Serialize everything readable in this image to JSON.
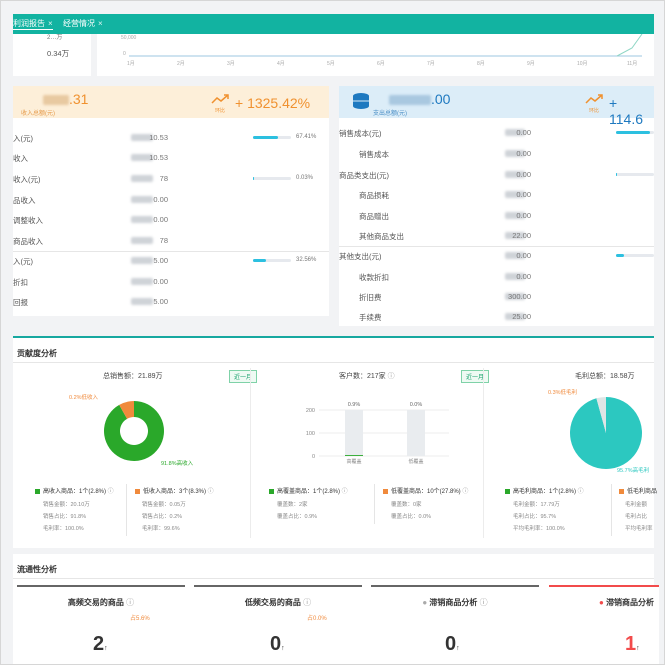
{
  "tabs": [
    {
      "label": "利润报告",
      "close": "×"
    },
    {
      "label": "经营情况",
      "close": "×"
    }
  ],
  "top": {
    "left_value_partial": "2…万",
    "left_value": "0.34万",
    "chart_ylabel": "50,000",
    "chart_y0": "0",
    "months": [
      "1月",
      "2月",
      "3月",
      "4月",
      "5月",
      "6月",
      "7月",
      "8月",
      "9月",
      "10月",
      "11月"
    ]
  },
  "income": {
    "amount": ".31",
    "sub_label": "收入总额(元)",
    "trend_label": "环比",
    "change": "+ 1325.42%",
    "rows": [
      {
        "label": "入(元)",
        "value": "10.53",
        "pct": "67.41%",
        "fill": 0.67
      },
      {
        "label": "收入",
        "value": "10.53"
      },
      {
        "label": "收入(元)",
        "value": "78",
        "pct": "0.03%",
        "fill": 0.03
      },
      {
        "label": "品收入",
        "value": "0.00"
      },
      {
        "label": "调整收入",
        "value": "0.00"
      },
      {
        "label": "商品收入",
        "value": "78"
      },
      {
        "label": "入(元)",
        "value": "5.00",
        "pct": "32.56%",
        "fill": 0.33
      },
      {
        "label": "折扣",
        "value": "0.00"
      },
      {
        "label": "回报",
        "value": "5.00"
      }
    ]
  },
  "expense": {
    "amount": ".00",
    "sub_label": "支出总额(元)",
    "trend_label": "环比",
    "change": "+ 114.6",
    "rows": [
      {
        "label": "销售成本(元)",
        "value": "0.00",
        "fill": 0.9
      },
      {
        "label": "销售成本",
        "value": "0.00"
      },
      {
        "label": "商品类支出(元)",
        "value": "0.00",
        "fill": 0.02
      },
      {
        "label": "商品损耗",
        "value": "0.00"
      },
      {
        "label": "商品赠出",
        "value": "0.00"
      },
      {
        "label": "其他商品支出",
        "value": "22.00"
      },
      {
        "label": "其他支出(元)",
        "value": "0.00",
        "fill": 0.2
      },
      {
        "label": "收款折扣",
        "value": "0.00"
      },
      {
        "label": "折旧费",
        "value": "300.00"
      },
      {
        "label": "手续费",
        "value": "25.00"
      }
    ]
  },
  "contribution": {
    "title": "贡献度分析",
    "sales": {
      "title": "总销售额：21.89万",
      "badge": "近一月",
      "high_pct": "91.8%高收入",
      "low_pct": "0.2%低收入",
      "high_share": 91.8,
      "low_share": 8.2,
      "legend_high": "高收入商品：1个(2.8%)",
      "legend_low": "低收入商品：3个(8.3%)",
      "high_stats": [
        "销售金额：20.10万",
        "销售占比：91.8%",
        "毛利率：100.0%"
      ],
      "low_stats": [
        "销售金额：0.05万",
        "销售占比：0.2%",
        "毛利率：99.6%"
      ]
    },
    "customers": {
      "title": "客户数：217家",
      "badge": "近一月",
      "bars": [
        {
          "category": "高覆盖",
          "value": 0.9,
          "label": "0.9%"
        },
        {
          "category": "低覆盖",
          "value": 0.0,
          "label": "0.0%"
        }
      ],
      "yticks": [
        "200",
        "100",
        "0"
      ],
      "legend_high": "高覆盖商品：1个(2.8%)",
      "legend_low": "低覆盖商品：10个(27.8%)",
      "high_stats": [
        "覆盖数：2家",
        "覆盖占比：0.9%"
      ],
      "low_stats": [
        "覆盖数：0家",
        "覆盖占比：0.0%"
      ]
    },
    "margin": {
      "title": "毛利总额：18.58万",
      "high_pct": "95.7%高毛利",
      "low_pct": "0.3%低毛利",
      "high_share": 95.7,
      "low_share": 4.3,
      "legend_high": "高毛利商品：1个(2.8%)",
      "legend_low": "低毛利商品",
      "high_stats": [
        "毛利金额：17.79万",
        "毛利占比：95.7%",
        "平均毛利率：100.0%"
      ],
      "low_stats": [
        "毛利金额",
        "毛利占比",
        "平均毛利率"
      ]
    }
  },
  "liquidity": {
    "title": "流通性分析",
    "cards": [
      {
        "title": "高频交易的商品",
        "num": "2",
        "tag": "占5.6%"
      },
      {
        "title": "低频交易的商品",
        "num": "0",
        "tag": "占0.0%"
      },
      {
        "title": "滞销商品分析",
        "num": "0",
        "tag": ""
      },
      {
        "title": "滞销商品分析",
        "num": "1",
        "tag": ""
      }
    ]
  },
  "colors": {
    "teal": "#12b3a1",
    "green": "#2aa82a",
    "orange": "#f08a3c",
    "cyan": "#2cc8c0",
    "red": "#f24b4b"
  }
}
